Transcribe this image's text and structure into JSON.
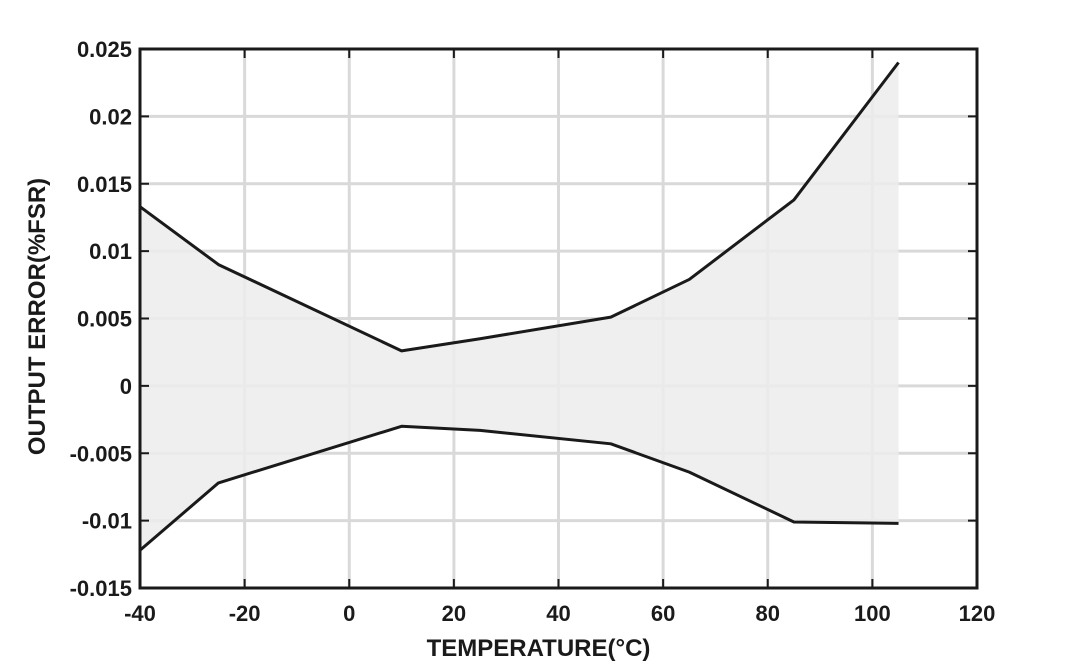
{
  "chart_data": {
    "type": "area",
    "title": "",
    "xlabel": "TEMPERATURE(°C)",
    "ylabel": "OUTPUT ERROR(%FSR)",
    "xlim": [
      -40,
      120
    ],
    "ylim": [
      -0.015,
      0.025
    ],
    "x_ticks": [
      -40,
      -20,
      0,
      20,
      40,
      60,
      80,
      100,
      120
    ],
    "x_tick_labels": [
      "-40",
      "-20",
      "0",
      "20",
      "40",
      "60",
      "80",
      "100",
      "120"
    ],
    "y_ticks": [
      -0.015,
      -0.01,
      -0.005,
      0,
      0.005,
      0.01,
      0.015,
      0.02,
      0.025
    ],
    "y_tick_labels": [
      "-0.015",
      "-0.01",
      "-0.005",
      "0",
      "0.005",
      "0.01",
      "0.015",
      "0.02",
      "0.025"
    ],
    "grid": true,
    "fill_color": "#ececec",
    "line_color": "#1a1a1a",
    "series": [
      {
        "x": [
          -40,
          -25,
          10,
          25,
          50,
          65,
          85,
          105
        ],
        "values": [
          0.0133,
          0.009,
          0.0026,
          0.0035,
          0.0051,
          0.0079,
          0.0138,
          0.024
        ]
      },
      {
        "x": [
          -40,
          -25,
          10,
          25,
          50,
          65,
          85,
          105
        ],
        "values": [
          -0.0122,
          -0.0072,
          -0.003,
          -0.0033,
          -0.0043,
          -0.0064,
          -0.0101,
          -0.0102
        ]
      }
    ]
  }
}
